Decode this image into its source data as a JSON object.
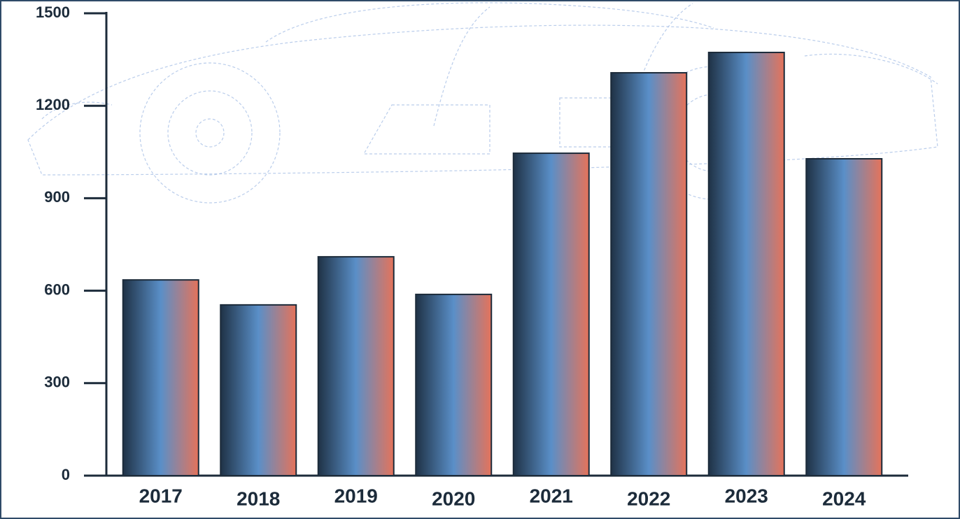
{
  "chart_data": {
    "type": "bar",
    "categories": [
      "2017",
      "2018",
      "2019",
      "2020",
      "2021",
      "2022",
      "2023",
      "2024"
    ],
    "values": [
      635,
      554,
      710,
      588,
      1046,
      1307,
      1373,
      1028
    ],
    "colors": [
      "#1f3246",
      "#5a8fc8",
      "#e5735a"
    ],
    "ylim": [
      0,
      1500
    ],
    "yticks": [
      0,
      300,
      600,
      900,
      1200,
      1500
    ]
  }
}
